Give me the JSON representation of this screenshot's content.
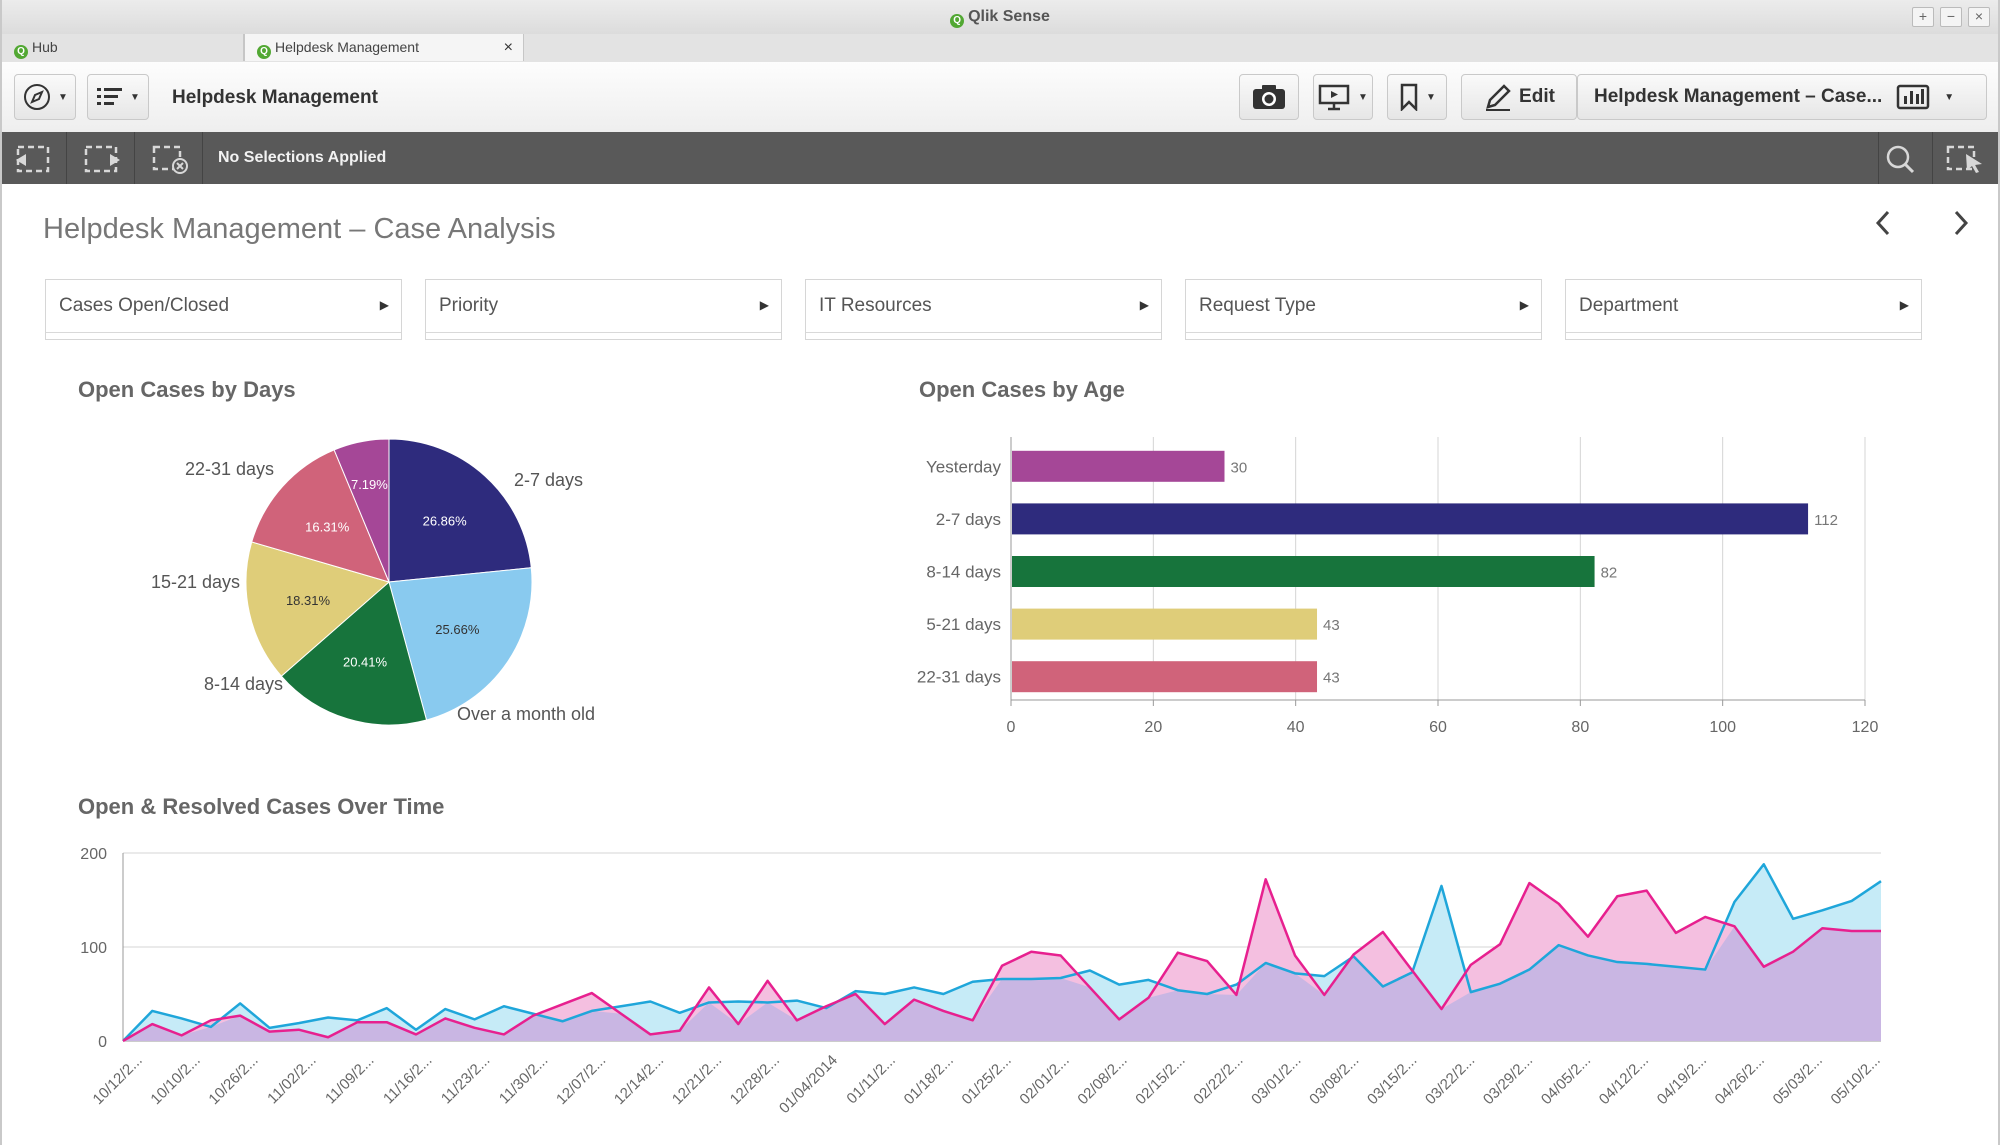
{
  "window": {
    "title": "Qlik Sense"
  },
  "tabs": [
    {
      "label": "Hub"
    },
    {
      "label": "Helpdesk Management",
      "close": "×"
    }
  ],
  "toolbar": {
    "app_title": "Helpdesk Management",
    "edit_label": "Edit",
    "sheet_selector": "Helpdesk Management – Case..."
  },
  "selections": {
    "status": "No Selections Applied"
  },
  "sheet": {
    "title": "Helpdesk Management – Case Analysis",
    "filters": [
      "Cases Open/Closed",
      "Priority",
      "IT Resources",
      "Request Type",
      "Department"
    ]
  },
  "colors": {
    "navy": "#2e2b7d",
    "lightblue": "#89caef",
    "green": "#17743c",
    "khaki": "#dfcd79",
    "rose": "#d0637a",
    "magenta": "#a54797",
    "resolved_line": "#e7208f",
    "open_line": "#1fa6da"
  },
  "chart_data": [
    {
      "type": "pie",
      "title": "Open Cases by Days",
      "slices": [
        {
          "label": "2-7 days",
          "value": 26.86,
          "display": "26.86%",
          "color": "#2e2b7d"
        },
        {
          "label": "Over a month old",
          "value": 25.66,
          "display": "25.66%",
          "color": "#89caef"
        },
        {
          "label": "8-14 days",
          "value": 20.41,
          "display": "20.41%",
          "color": "#17743c"
        },
        {
          "label": "15-21 days",
          "value": 18.31,
          "display": "18.31%",
          "color": "#dfcd79"
        },
        {
          "label": "22-31 days",
          "value": 16.31,
          "display": "16.31%",
          "color": "#d0637a"
        },
        {
          "label": "",
          "value": 7.19,
          "display": "7.19%",
          "color": "#a54797"
        }
      ]
    },
    {
      "type": "bar",
      "orientation": "horizontal",
      "title": "Open Cases by Age",
      "categories": [
        "Yesterday",
        "2-7 days",
        "8-14 days",
        "5-21 days",
        "22-31 days"
      ],
      "values": [
        30,
        112,
        82,
        43,
        43
      ],
      "colors": [
        "#a54797",
        "#2e2b7d",
        "#17743c",
        "#dfcd79",
        "#d0637a"
      ],
      "xlim": [
        0,
        120
      ],
      "xticks": [
        0,
        20,
        40,
        60,
        80,
        100,
        120
      ],
      "grid": true
    },
    {
      "type": "area",
      "title": "Open & Resolved Cases Over Time",
      "ylim": [
        0,
        200
      ],
      "yticks": [
        0,
        100,
        200
      ],
      "x_labels": [
        "10/12/2...",
        "10/10/2...",
        "10/26/2...",
        "11/02/2...",
        "11/09/2...",
        "11/16/2...",
        "11/23/2...",
        "11/30/2...",
        "12/07/2...",
        "12/14/2...",
        "12/21/2...",
        "12/28/2...",
        "01/04/2014",
        "01/11/2...",
        "01/18/2...",
        "01/25/2...",
        "02/01/2...",
        "02/08/2...",
        "02/15/2...",
        "02/22/2...",
        "03/01/2...",
        "03/08/2...",
        "03/15/2...",
        "03/22/2...",
        "03/29/2...",
        "04/05/2...",
        "04/12/2...",
        "04/19/2...",
        "04/26/2...",
        "05/03/2...",
        "05/10/2..."
      ],
      "series": [
        {
          "color": "#1fa6da",
          "values": [
            0,
            32,
            24,
            15,
            40,
            14,
            19,
            25,
            22,
            35,
            12,
            34,
            23,
            37,
            29,
            21,
            32,
            37,
            42,
            30,
            41,
            42,
            41,
            43,
            35,
            53,
            50,
            57,
            50,
            63,
            66,
            66,
            67,
            75,
            60,
            65,
            54,
            50,
            60,
            83,
            72,
            69,
            90,
            58,
            73,
            165,
            52,
            61,
            76,
            102,
            91,
            84,
            82,
            79,
            76,
            148,
            188,
            130,
            139,
            149,
            170
          ]
        },
        {
          "color": "#e7208f",
          "values": [
            0,
            18,
            6,
            22,
            27,
            10,
            12,
            4,
            20,
            20,
            7,
            24,
            14,
            7,
            27,
            39,
            51,
            29,
            7,
            11,
            57,
            18,
            64,
            22,
            37,
            50,
            18,
            44,
            32,
            22,
            80,
            95,
            91,
            57,
            23,
            46,
            94,
            85,
            49,
            172,
            91,
            49,
            92,
            116,
            75,
            34,
            81,
            103,
            168,
            146,
            111,
            154,
            160,
            115,
            132,
            122,
            79,
            95,
            120,
            117,
            117
          ]
        }
      ]
    }
  ]
}
